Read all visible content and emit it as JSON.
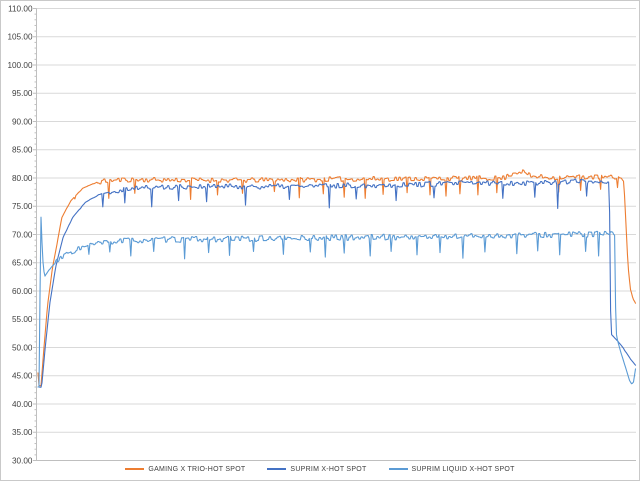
{
  "colors": {
    "background": "#FFFFFF",
    "grid": "#D9D9D9",
    "axis": "#BFBFBF",
    "tick_label": "#404040",
    "legend_text": "#404040",
    "border": "#C9C9C9"
  },
  "chart_data": {
    "type": "line",
    "title": "",
    "xlabel": "",
    "ylabel": "",
    "ylim": [
      30,
      110
    ],
    "ytick_step": 5,
    "ytick_labels": [
      "110.00",
      "105.00",
      "100.00",
      "95.00",
      "90.00",
      "85.00",
      "80.00",
      "75.00",
      "70.00",
      "65.00",
      "60.00",
      "55.00",
      "50.00",
      "45.00",
      "40.00",
      "35.00",
      "30.00"
    ],
    "x_axis_labels_visible": false,
    "grid": true,
    "legend_position": "bottom",
    "n_points": 600,
    "series": [
      {
        "name": "GAMING X TRIO-HOT SPOT",
        "color": "#ED7D31",
        "seed": 11,
        "noise": 0.42,
        "noise_window": [
          0.1,
          0.972
        ],
        "control_points": [
          [
            0.0,
            45.5
          ],
          [
            0.0016,
            43.3
          ],
          [
            0.005,
            43.2
          ],
          [
            0.01,
            50.0
          ],
          [
            0.016,
            57.5
          ],
          [
            0.024,
            64.0
          ],
          [
            0.033,
            69.0
          ],
          [
            0.04,
            73.0
          ],
          [
            0.055,
            76.0
          ],
          [
            0.075,
            78.2
          ],
          [
            0.1,
            79.3
          ],
          [
            0.14,
            79.7
          ],
          [
            0.35,
            79.6
          ],
          [
            0.5,
            79.8
          ],
          [
            0.65,
            79.9
          ],
          [
            0.78,
            80.0
          ],
          [
            0.795,
            80.9
          ],
          [
            0.81,
            81.2
          ],
          [
            0.825,
            80.3
          ],
          [
            0.86,
            80.1
          ],
          [
            0.92,
            80.2
          ],
          [
            0.958,
            80.1
          ],
          [
            0.976,
            80.0
          ],
          [
            0.9805,
            79.4
          ],
          [
            0.984,
            72.0
          ],
          [
            0.9875,
            64.5
          ],
          [
            0.9915,
            60.3
          ],
          [
            0.996,
            58.6
          ],
          [
            1.0,
            57.8
          ]
        ],
        "spikes": [
          [
            0.062,
            76.3
          ],
          [
            0.118,
            76.4
          ],
          [
            0.162,
            77.3
          ],
          [
            0.255,
            76.2
          ],
          [
            0.3,
            77.0
          ],
          [
            0.342,
            77.3
          ],
          [
            0.396,
            77.6
          ],
          [
            0.438,
            76.5
          ],
          [
            0.478,
            77.2
          ],
          [
            0.512,
            76.6
          ],
          [
            0.548,
            76.4
          ],
          [
            0.578,
            77.1
          ],
          [
            0.618,
            77.4
          ],
          [
            0.656,
            77.0
          ],
          [
            0.683,
            76.8
          ],
          [
            0.706,
            77.2
          ],
          [
            0.736,
            77.0
          ],
          [
            0.768,
            77.4
          ],
          [
            0.872,
            77.5
          ],
          [
            0.908,
            77.8
          ],
          [
            0.942,
            78.0
          ],
          [
            0.97,
            78.3
          ]
        ]
      },
      {
        "name": "SUPRIM X-HOT SPOT",
        "color": "#4472C4",
        "seed": 22,
        "noise": 0.45,
        "noise_window": [
          0.12,
          0.952
        ],
        "control_points": [
          [
            0.0,
            43.0
          ],
          [
            0.006,
            43.0
          ],
          [
            0.012,
            50.0
          ],
          [
            0.02,
            58.0
          ],
          [
            0.03,
            64.5
          ],
          [
            0.042,
            69.5
          ],
          [
            0.058,
            73.0
          ],
          [
            0.08,
            75.8
          ],
          [
            0.105,
            77.2
          ],
          [
            0.15,
            78.2
          ],
          [
            0.25,
            78.5
          ],
          [
            0.4,
            78.5
          ],
          [
            0.55,
            78.7
          ],
          [
            0.65,
            78.9
          ],
          [
            0.72,
            79.1
          ],
          [
            0.78,
            79.1
          ],
          [
            0.85,
            79.2
          ],
          [
            0.9,
            79.4
          ],
          [
            0.94,
            79.4
          ],
          [
            0.955,
            79.3
          ],
          [
            0.9562,
            79.2
          ],
          [
            0.9578,
            58.0
          ],
          [
            0.9595,
            52.3
          ],
          [
            0.97,
            51.2
          ],
          [
            0.98,
            49.8
          ],
          [
            0.99,
            48.2
          ],
          [
            1.0,
            46.9
          ]
        ],
        "spikes": [
          [
            0.108,
            74.9
          ],
          [
            0.146,
            75.6
          ],
          [
            0.19,
            74.9
          ],
          [
            0.236,
            76.0
          ],
          [
            0.282,
            75.8
          ],
          [
            0.348,
            75.2
          ],
          [
            0.42,
            76.2
          ],
          [
            0.487,
            74.7
          ],
          [
            0.532,
            76.3
          ],
          [
            0.6,
            76.0
          ],
          [
            0.662,
            76.5
          ],
          [
            0.778,
            76.4
          ],
          [
            0.832,
            76.6
          ],
          [
            0.87,
            74.6
          ],
          [
            0.918,
            76.8
          ]
        ]
      },
      {
        "name": "SUPRIM LIQUID X-HOT SPOT",
        "color": "#5B9BD5",
        "seed": 33,
        "noise": 0.5,
        "noise_window": [
          0.03,
          0.962
        ],
        "control_points": [
          [
            0.0,
            43.0
          ],
          [
            0.0025,
            43.0
          ],
          [
            0.0042,
            75.5
          ],
          [
            0.006,
            70.0
          ],
          [
            0.0085,
            64.8
          ],
          [
            0.011,
            62.6
          ],
          [
            0.022,
            64.2
          ],
          [
            0.04,
            66.0
          ],
          [
            0.065,
            67.4
          ],
          [
            0.095,
            68.3
          ],
          [
            0.14,
            68.9
          ],
          [
            0.22,
            69.1
          ],
          [
            0.4,
            69.3
          ],
          [
            0.54,
            69.5
          ],
          [
            0.66,
            69.6
          ],
          [
            0.78,
            69.8
          ],
          [
            0.88,
            70.0
          ],
          [
            0.945,
            70.1
          ],
          [
            0.964,
            70.0
          ],
          [
            0.9655,
            69.8
          ],
          [
            0.9668,
            55.0
          ],
          [
            0.9685,
            51.8
          ],
          [
            0.976,
            49.0
          ],
          [
            0.984,
            46.3
          ],
          [
            0.99,
            44.2
          ],
          [
            0.9935,
            43.6
          ],
          [
            0.9965,
            43.8
          ],
          [
            1.0,
            46.2
          ]
        ],
        "spikes": [
          [
            0.085,
            66.5
          ],
          [
            0.121,
            66.9
          ],
          [
            0.155,
            66.2
          ],
          [
            0.193,
            67.0
          ],
          [
            0.246,
            65.7
          ],
          [
            0.286,
            66.8
          ],
          [
            0.321,
            66.3
          ],
          [
            0.36,
            67.0
          ],
          [
            0.411,
            66.5
          ],
          [
            0.455,
            66.9
          ],
          [
            0.481,
            66.0
          ],
          [
            0.513,
            66.7
          ],
          [
            0.556,
            66.2
          ],
          [
            0.591,
            67.0
          ],
          [
            0.634,
            66.4
          ],
          [
            0.672,
            66.8
          ],
          [
            0.711,
            65.8
          ],
          [
            0.748,
            66.9
          ],
          [
            0.801,
            66.6
          ],
          [
            0.836,
            67.1
          ],
          [
            0.873,
            66.4
          ],
          [
            0.916,
            67.0
          ],
          [
            0.939,
            66.2
          ]
        ]
      }
    ]
  }
}
